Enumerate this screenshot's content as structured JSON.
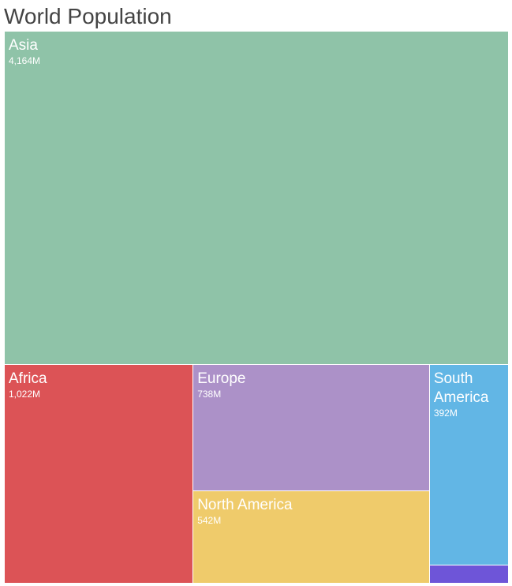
{
  "chart_data": {
    "type": "treemap",
    "title": "World Population",
    "unit": "M",
    "items": [
      {
        "name": "Asia",
        "value": 4164,
        "label": "4,164M",
        "color": "#8fc3a8"
      },
      {
        "name": "Africa",
        "value": 1022,
        "label": "1,022M",
        "color": "#dc5356"
      },
      {
        "name": "Europe",
        "value": 738,
        "label": "738M",
        "color": "#ac91c8"
      },
      {
        "name": "North America",
        "value": 542,
        "label": "542M",
        "color": "#efcb6b"
      },
      {
        "name": "South America",
        "value": 392,
        "label": "392M",
        "color": "#62b6e5"
      },
      {
        "name": "",
        "value": 36,
        "label": "",
        "color": "#6e55d8"
      }
    ]
  }
}
